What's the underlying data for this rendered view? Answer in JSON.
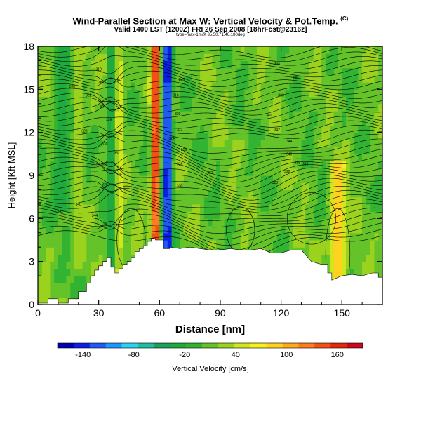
{
  "header": {
    "title": "Wind-Parallel Section at Max W: Vertical Velocity & Pot.Temp.",
    "copyright_mark": "(C)",
    "valid_line": "Valid 1400 LST (1200Z) FRI 26 Sep 2008 [18hrFcst@2316z]",
    "sub_line": "type=max-1m@ 35.50,71.46,180deg"
  },
  "chart_data": {
    "type": "heatmap",
    "title": "Wind-Parallel Section at Max W: Vertical Velocity & Pot.Temp.",
    "xlabel": "Distance [nm]",
    "ylabel": "Height [Kft MSL]",
    "xlim": [
      0,
      170
    ],
    "ylim": [
      0,
      18
    ],
    "xticks": [
      0,
      30,
      60,
      90,
      120,
      150
    ],
    "yticks": [
      0,
      3,
      6,
      9,
      12,
      15,
      18
    ],
    "color_variable": "Vertical Velocity [cm/s]",
    "contour_variable": "Potential Temperature",
    "colorbar": {
      "label": "Vertical Velocity [cm/s]",
      "tick_labels": [
        "-140",
        "-80",
        "-20",
        "40",
        "100",
        "160"
      ],
      "tick_values": [
        -140,
        -80,
        -20,
        40,
        100,
        160
      ],
      "range": [
        -170,
        190
      ],
      "step": 20,
      "colors": [
        "#0000b0",
        "#0a1ee6",
        "#1e5af5",
        "#1e96ff",
        "#28d2f0",
        "#1ebea0",
        "#19a05a",
        "#1eaa3c",
        "#32b432",
        "#64c328",
        "#9bd21e",
        "#d2e61e",
        "#f5f01e",
        "#ffd21e",
        "#ffaa1e",
        "#ff7d1e",
        "#f55014",
        "#e6280a",
        "#c80a1e"
      ]
    },
    "terrain_profile": {
      "x": [
        0,
        5,
        5,
        10,
        10,
        15,
        15,
        20,
        20,
        24,
        24,
        26,
        26,
        28,
        28,
        30,
        30,
        32,
        32,
        34,
        34,
        36,
        36,
        38,
        38,
        40,
        40,
        42,
        42,
        44,
        44,
        46,
        46,
        48,
        48,
        50,
        50,
        52,
        52,
        54,
        54,
        56,
        56,
        58,
        58,
        62,
        62,
        65,
        65,
        70,
        75,
        80,
        85,
        90,
        95,
        100,
        105,
        110,
        115,
        120,
        125,
        130,
        135,
        140,
        143,
        143,
        145,
        145,
        150,
        155,
        160,
        165,
        168,
        168,
        170
      ],
      "height": [
        0.1,
        0.1,
        0.4,
        0.4,
        0.1,
        0.1,
        0.4,
        0.4,
        0.9,
        0.9,
        1.5,
        1.5,
        2.0,
        2.0,
        2.4,
        2.4,
        2.7,
        2.7,
        3.0,
        3.0,
        3.3,
        3.3,
        2.6,
        2.6,
        2.2,
        2.2,
        2.5,
        2.5,
        2.8,
        2.8,
        3.0,
        3.0,
        3.3,
        3.3,
        3.7,
        3.7,
        3.9,
        3.9,
        4.1,
        4.1,
        4.4,
        4.4,
        4.6,
        4.6,
        4.5,
        4.5,
        3.9,
        3.9,
        4.0,
        3.9,
        4.0,
        3.9,
        3.8,
        3.8,
        3.9,
        3.8,
        3.8,
        3.9,
        3.6,
        3.6,
        3.8,
        3.8,
        3.0,
        2.8,
        2.8,
        2.2,
        2.2,
        1.7,
        2.0,
        2.1,
        2.0,
        2.2,
        2.2,
        1.9,
        1.9
      ]
    },
    "velocity_features": [
      {
        "x": 58,
        "y_range": [
          5,
          18
        ],
        "value": 190,
        "half_width": 2.2
      },
      {
        "x": 64,
        "y_range": [
          4,
          18
        ],
        "value": -170,
        "half_width": 2.2
      },
      {
        "x": 148,
        "y_range": [
          2,
          9.5
        ],
        "value": 100,
        "half_width": 4
      },
      {
        "x": 40,
        "y_range": [
          2,
          18
        ],
        "value": 60,
        "half_width": 2.5
      },
      {
        "x": 20,
        "y_range": [
          3,
          18
        ],
        "value": 40,
        "half_width": 2.5
      },
      {
        "x": 36,
        "y_range": [
          3,
          18
        ],
        "value": -30,
        "half_width": 2
      },
      {
        "x": 12,
        "y_range": [
          7,
          18
        ],
        "value": -30,
        "half_width": 4
      }
    ],
    "contour_labels": [
      "318",
      "320",
      "322",
      "324",
      "326",
      "328",
      "330",
      "332",
      "334",
      "336",
      "338",
      "340",
      "342",
      "344",
      "346"
    ]
  }
}
